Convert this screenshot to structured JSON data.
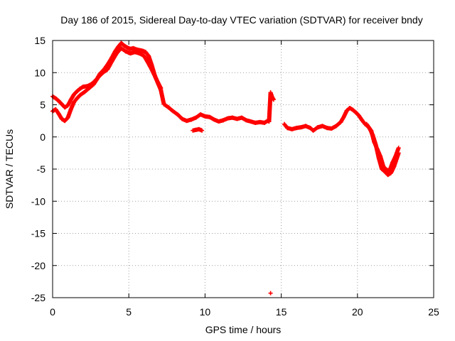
{
  "chart_data": {
    "type": "scatter",
    "title": "Day 186 of 2015, Sidereal Day-to-day VTEC variation (SDTVAR) for receiver bndy",
    "xlabel": "GPS time / hours",
    "ylabel": "SDTVAR / TECUs",
    "xlim": [
      0,
      25
    ],
    "ylim": [
      -25,
      15
    ],
    "xticks": [
      0,
      5,
      10,
      15,
      20,
      25
    ],
    "yticks": [
      -25,
      -20,
      -15,
      -10,
      -5,
      0,
      5,
      10,
      15
    ],
    "xtick_labels": [
      "0",
      "5",
      "10",
      "15",
      "20",
      "25"
    ],
    "ytick_labels": [
      "-25",
      "-20",
      "-15",
      "-10",
      "-5",
      "0",
      "5",
      "10",
      "15"
    ],
    "grid": true,
    "marker": "+",
    "color": "#ff0000",
    "series": [
      {
        "name": "track-a",
        "points": [
          [
            0.0,
            6.3
          ],
          [
            0.2,
            6.0
          ],
          [
            0.4,
            5.6
          ],
          [
            0.6,
            5.1
          ],
          [
            0.8,
            4.6
          ],
          [
            1.0,
            4.9
          ],
          [
            1.2,
            5.8
          ],
          [
            1.4,
            6.6
          ],
          [
            1.6,
            7.1
          ],
          [
            1.8,
            7.5
          ],
          [
            2.0,
            7.8
          ],
          [
            2.3,
            7.9
          ],
          [
            2.6,
            8.3
          ],
          [
            2.9,
            9.0
          ],
          [
            3.1,
            9.8
          ],
          [
            3.3,
            10.3
          ],
          [
            3.5,
            10.9
          ],
          [
            3.7,
            11.6
          ],
          [
            3.9,
            12.4
          ],
          [
            4.1,
            13.3
          ],
          [
            4.3,
            14.0
          ],
          [
            4.5,
            14.6
          ],
          [
            4.7,
            14.2
          ],
          [
            4.9,
            13.9
          ],
          [
            5.1,
            13.7
          ],
          [
            5.3,
            13.8
          ],
          [
            5.5,
            13.6
          ],
          [
            5.7,
            13.5
          ],
          [
            5.9,
            13.4
          ],
          [
            6.1,
            13.2
          ],
          [
            6.3,
            12.6
          ],
          [
            6.5,
            11.2
          ],
          [
            6.7,
            9.6
          ],
          [
            6.9,
            8.4
          ],
          [
            7.1,
            7.3
          ],
          [
            7.3,
            5.1
          ],
          [
            7.6,
            4.6
          ],
          [
            7.9,
            4.0
          ],
          [
            8.2,
            3.5
          ],
          [
            8.5,
            2.8
          ],
          [
            8.8,
            2.5
          ],
          [
            9.1,
            2.7
          ],
          [
            9.4,
            3.0
          ],
          [
            9.7,
            3.5
          ],
          [
            10.0,
            3.2
          ],
          [
            10.3,
            3.1
          ],
          [
            10.6,
            2.7
          ],
          [
            10.9,
            2.4
          ],
          [
            11.2,
            2.6
          ],
          [
            11.5,
            2.9
          ],
          [
            11.8,
            3.0
          ],
          [
            12.1,
            2.8
          ],
          [
            12.4,
            3.0
          ],
          [
            12.7,
            2.6
          ],
          [
            13.0,
            2.4
          ],
          [
            13.3,
            2.2
          ],
          [
            13.6,
            2.3
          ],
          [
            13.9,
            2.2
          ],
          [
            14.1,
            2.5
          ],
          [
            14.2,
            2.4
          ],
          [
            14.3,
            6.9
          ],
          [
            14.4,
            6.2
          ],
          [
            14.5,
            5.8
          ]
        ]
      },
      {
        "name": "track-b",
        "points": [
          [
            0.0,
            4.0
          ],
          [
            0.2,
            4.3
          ],
          [
            0.4,
            3.6
          ],
          [
            0.6,
            2.8
          ],
          [
            0.8,
            2.5
          ],
          [
            1.0,
            3.0
          ],
          [
            1.2,
            4.3
          ],
          [
            1.4,
            5.4
          ],
          [
            1.6,
            6.0
          ],
          [
            1.8,
            6.5
          ],
          [
            2.1,
            7.0
          ],
          [
            2.4,
            7.6
          ],
          [
            2.7,
            8.2
          ],
          [
            3.0,
            9.3
          ],
          [
            3.3,
            10.0
          ],
          [
            3.6,
            10.5
          ],
          [
            3.9,
            11.8
          ],
          [
            4.2,
            13.0
          ],
          [
            4.5,
            13.8
          ],
          [
            4.8,
            13.3
          ],
          [
            5.1,
            13.0
          ],
          [
            5.4,
            13.2
          ],
          [
            5.7,
            13.0
          ],
          [
            6.0,
            12.6
          ],
          [
            6.2,
            11.8
          ],
          [
            6.5,
            10.5
          ],
          [
            6.8,
            9.0
          ],
          [
            7.1,
            7.6
          ],
          [
            9.2,
            1.0
          ],
          [
            9.4,
            1.1
          ],
          [
            9.6,
            1.2
          ],
          [
            9.8,
            1.0
          ]
        ]
      },
      {
        "name": "track-c",
        "points": [
          [
            15.2,
            2.0
          ],
          [
            15.4,
            1.4
          ],
          [
            15.7,
            1.2
          ],
          [
            16.0,
            1.4
          ],
          [
            16.3,
            1.5
          ],
          [
            16.6,
            1.7
          ],
          [
            16.9,
            1.4
          ],
          [
            17.1,
            1.0
          ],
          [
            17.4,
            1.5
          ],
          [
            17.7,
            1.7
          ],
          [
            18.0,
            1.4
          ],
          [
            18.3,
            1.3
          ],
          [
            18.6,
            1.7
          ],
          [
            18.9,
            2.3
          ],
          [
            19.1,
            3.1
          ],
          [
            19.3,
            4.1
          ],
          [
            19.5,
            4.5
          ],
          [
            19.7,
            4.2
          ],
          [
            19.9,
            3.8
          ],
          [
            20.1,
            3.3
          ],
          [
            20.3,
            2.6
          ],
          [
            20.5,
            2.0
          ],
          [
            20.7,
            1.6
          ],
          [
            20.9,
            1.0
          ],
          [
            21.1,
            -0.8
          ],
          [
            21.3,
            -1.9
          ],
          [
            21.5,
            -3.0
          ],
          [
            21.7,
            -4.6
          ],
          [
            21.9,
            -5.1
          ],
          [
            22.1,
            -5.3
          ],
          [
            22.3,
            -4.0
          ],
          [
            22.5,
            -3.0
          ],
          [
            22.7,
            -1.7
          ]
        ]
      },
      {
        "name": "track-d",
        "points": [
          [
            20.6,
            2.0
          ],
          [
            20.8,
            1.3
          ],
          [
            21.0,
            0.3
          ],
          [
            21.2,
            -1.2
          ],
          [
            21.4,
            -3.3
          ],
          [
            21.6,
            -5.0
          ],
          [
            21.8,
            -5.4
          ],
          [
            22.0,
            -5.9
          ],
          [
            22.2,
            -5.6
          ],
          [
            22.4,
            -4.6
          ],
          [
            22.6,
            -3.2
          ],
          [
            22.7,
            -2.5
          ]
        ]
      },
      {
        "name": "outlier",
        "points": [
          [
            14.3,
            -24.3
          ]
        ]
      }
    ]
  }
}
